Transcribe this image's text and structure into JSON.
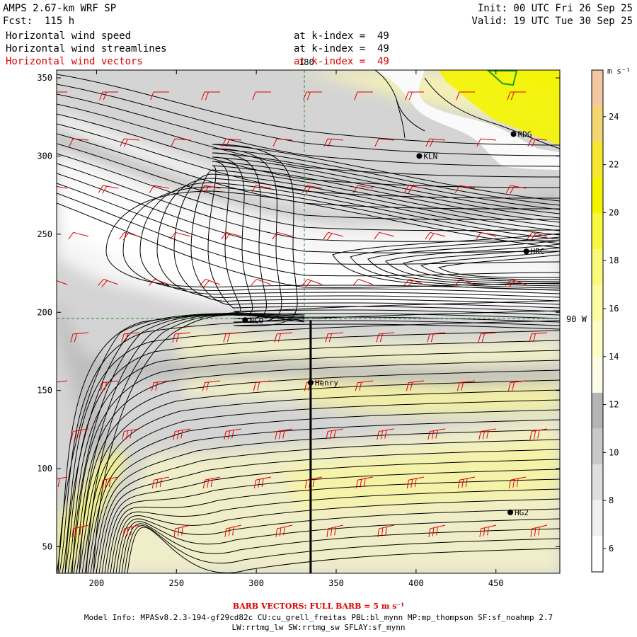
{
  "header": {
    "model": "AMPS 2.67-km WRF SP",
    "forecast": "Fcst:  115 h",
    "init": "Init: 00 UTC Fri 26 Sep 25",
    "valid": "Valid: 19 UTC Tue 30 Sep 25",
    "fields": [
      {
        "name": "Horizontal wind speed",
        "level": "at k-index =  49"
      },
      {
        "name": "Horizontal wind streamlines",
        "level": "at k-index =  49"
      },
      {
        "name": "Horizontal wind vectors",
        "level": "at k-index =  49"
      }
    ]
  },
  "map": {
    "xaxis": {
      "min": 175,
      "max": 490,
      "ticks": [
        "200",
        "250",
        "300",
        "350",
        "400",
        "450"
      ]
    },
    "yaxis": {
      "min": 33,
      "max": 355,
      "ticks": [
        "50",
        "100",
        "150",
        "200",
        "250",
        "300",
        "350"
      ]
    },
    "longitude_label_top": "180",
    "latitude_label_right": "90 W",
    "meridian_x": 330,
    "parallel_y": 195,
    "stations": [
      {
        "name": "KLN",
        "x": 402,
        "y": 300
      },
      {
        "name": "RDG",
        "x": 461,
        "y": 314
      },
      {
        "name": "HRC",
        "x": 469,
        "y": 239
      },
      {
        "name": "NCO",
        "x": 293,
        "y": 195
      },
      {
        "name": "Henry",
        "x": 334,
        "y": 155
      },
      {
        "name": "HG2",
        "x": 459,
        "y": 72
      }
    ],
    "cross_section_line": {
      "x": 334,
      "y_from": 195,
      "y_to": 33
    }
  },
  "colorbar": {
    "units": "m s⁻¹",
    "labels": [
      "6",
      "8",
      "10",
      "12",
      "14",
      "16",
      "18",
      "20",
      "22",
      "24"
    ],
    "colors": [
      "#ffffff",
      "#f0f0f0",
      "#dedede",
      "#c8c8c8",
      "#b4b4b4",
      "#fbfbe6",
      "#fdfdc4",
      "#fcfca4",
      "#fafa78",
      "#f8f840",
      "#f4f400",
      "#f6e630",
      "#f3d670",
      "#f3c8a0"
    ]
  },
  "footer": {
    "barb_note": "BARB VECTORS:  FULL BARB = 5 m s⁻¹",
    "model_info": "Model Info: MPASv8.2.3-194-gf29cd82c CU:cu_grell_freitas PBL:bl_mynn MP:mp_thompson SF:sf_noahmp 2.7",
    "model_info2": "LW:rrtmg_lw SW:rrtmg_sw SFLAY:sf_mynn"
  }
}
